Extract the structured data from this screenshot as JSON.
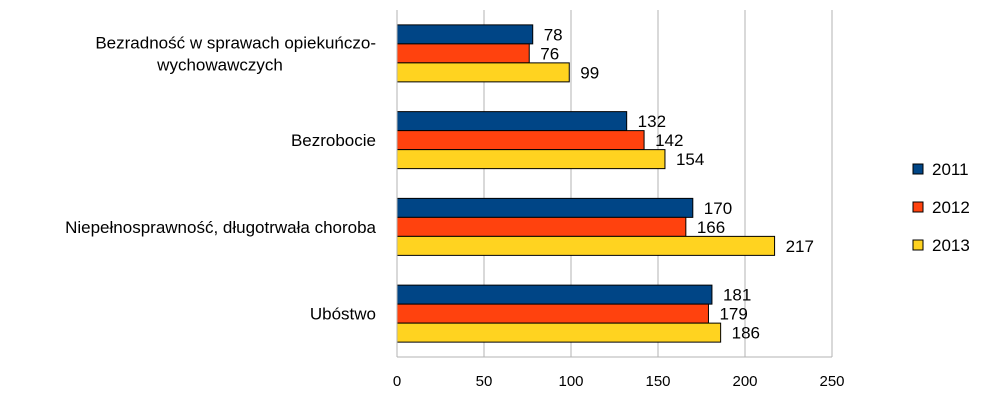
{
  "chart_data": {
    "type": "bar",
    "orientation": "horizontal",
    "categories": [
      [
        "Bezradność w sprawach opiekuńczo-",
        "wychowawczych"
      ],
      [
        "Bezrobocie"
      ],
      [
        "Niepełnosprawność, długotrwała choroba"
      ],
      [
        "Ubóstwo"
      ]
    ],
    "series": [
      {
        "name": "2011",
        "color": "#004586",
        "values": [
          78,
          132,
          170,
          181
        ]
      },
      {
        "name": "2012",
        "color": "#FF420E",
        "values": [
          76,
          142,
          166,
          179
        ]
      },
      {
        "name": "2013",
        "color": "#FFD320",
        "values": [
          99,
          154,
          217,
          186
        ]
      }
    ],
    "xlim": [
      0,
      250
    ],
    "xticks": [
      "0",
      "50",
      "100",
      "150",
      "200",
      "250"
    ],
    "grid": true,
    "legend_position": "right",
    "data_labels": true
  }
}
